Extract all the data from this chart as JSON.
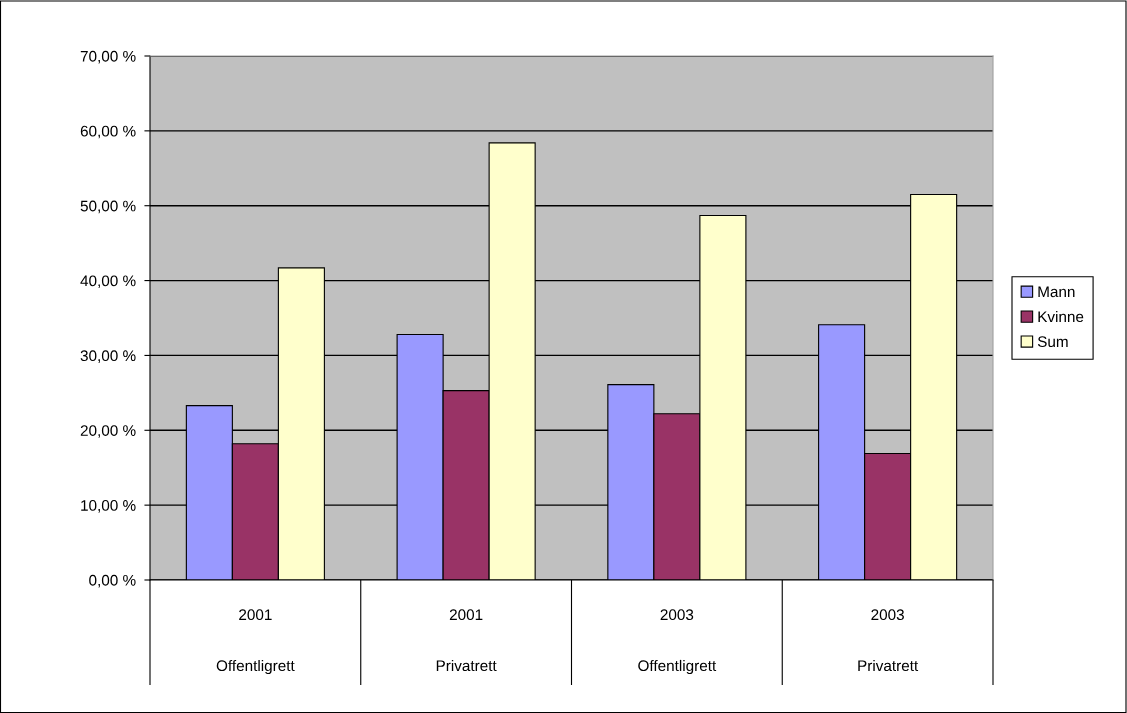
{
  "chart_data": {
    "type": "bar",
    "categories": [
      "2001\nOffentligrett",
      "2001\nPrivatrett",
      "2003\nOffentligrett",
      "2003\nPrivatrett"
    ],
    "series": [
      {
        "name": "Mann",
        "color": "#9999ff",
        "values": [
          23.3,
          32.8,
          26.1,
          34.1
        ]
      },
      {
        "name": "Kvinne",
        "color": "#993366",
        "values": [
          18.2,
          25.3,
          22.2,
          16.9
        ]
      },
      {
        "name": "Sum",
        "color": "#ffffcc",
        "values": [
          41.7,
          58.4,
          48.7,
          51.5
        ]
      }
    ],
    "ylim": [
      0,
      70
    ],
    "yticks": [
      {
        "value": 0,
        "label": "0,00 %"
      },
      {
        "value": 10,
        "label": "10,00 %"
      },
      {
        "value": 20,
        "label": "20,00 %"
      },
      {
        "value": 30,
        "label": "30,00 %"
      },
      {
        "value": 40,
        "label": "40,00 %"
      },
      {
        "value": 50,
        "label": "50,00 %"
      },
      {
        "value": 60,
        "label": "60,00 %"
      },
      {
        "value": 70,
        "label": "70,00 %"
      }
    ],
    "grid": "y",
    "legend": "right"
  }
}
